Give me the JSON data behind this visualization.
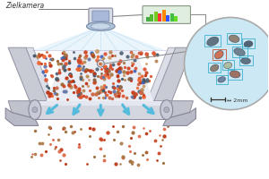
{
  "bg_color": "#ffffff",
  "label_zielkamera": "Zielkamera",
  "label_scale": "↔ 2mm",
  "arrow_color": "#55bbdd",
  "line_color": "#999999",
  "camera_color": "#889aaa",
  "belt_surface_color": "#e8eaf0",
  "belt_rail_color": "#c0c2cc",
  "belt_drum_color": "#b8bac8",
  "belt_frame_color": "#d0d2dc",
  "scan_cone_color": "#ddeeff",
  "zoom_bg_color": "#cce8f4",
  "zoom_edge_color": "#aaaaaa",
  "spec_bg_color": "#e8f0e8",
  "particle_reds": [
    "#cc4422",
    "#dd5533",
    "#bb3311",
    "#cc6644",
    "#ee6633"
  ],
  "particle_browns": [
    "#aa7744",
    "#996633",
    "#bb8855",
    "#8a6040",
    "#cc9966"
  ],
  "particle_grays": [
    "#556677",
    "#445566",
    "#6677aa",
    "#4466bb"
  ],
  "falling_colors": [
    "#cc4422",
    "#aa7744",
    "#bb3311",
    "#996633",
    "#dd6644"
  ],
  "spec_bar_colors": [
    "#44aa44",
    "#55bb33",
    "#77cc22",
    "#ff3333",
    "#ff8800",
    "#3355ff",
    "#44bb44",
    "#66dd22"
  ],
  "spec_bar_heights": [
    5,
    8,
    12,
    9,
    14,
    7,
    10,
    6
  ]
}
